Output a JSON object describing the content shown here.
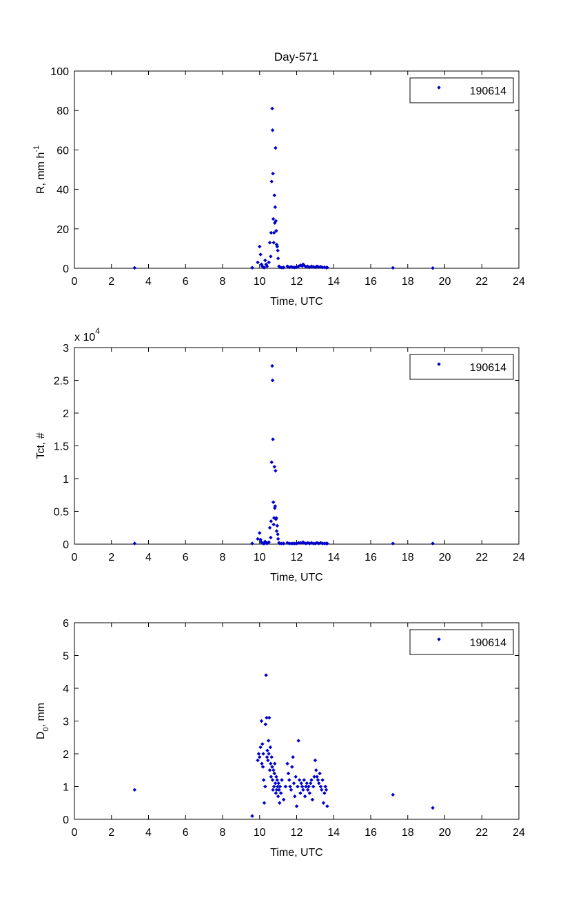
{
  "figure": {
    "title": "Day-571",
    "marker_color": "#0000cc",
    "frame_color": "#000000"
  },
  "chart_data": [
    {
      "type": "scatter",
      "title": "Day-571",
      "xlabel": "Time, UTC",
      "ylabel": "R, mm h",
      "ylabel_sup": "-1",
      "xlim": [
        0,
        24
      ],
      "ylim": [
        0,
        100
      ],
      "xticks": [
        0,
        2,
        4,
        6,
        8,
        10,
        12,
        14,
        16,
        18,
        20,
        22,
        24
      ],
      "yticks": [
        0,
        20,
        40,
        60,
        80,
        100
      ],
      "legend": {
        "label": "190614",
        "position": "top-right"
      },
      "series": [
        {
          "name": "190614",
          "x": [
            3.25,
            9.6,
            9.9,
            10.0,
            10.05,
            10.1,
            10.15,
            10.2,
            10.25,
            10.3,
            10.35,
            10.4,
            10.5,
            10.55,
            10.6,
            10.62,
            10.65,
            10.68,
            10.7,
            10.72,
            10.74,
            10.76,
            10.78,
            10.8,
            10.82,
            10.84,
            10.86,
            10.88,
            10.9,
            10.92,
            10.95,
            10.98,
            11.0,
            11.05,
            11.1,
            11.2,
            11.3,
            11.5,
            11.6,
            11.7,
            11.8,
            11.9,
            12.0,
            12.1,
            12.2,
            12.3,
            12.35,
            12.4,
            12.5,
            12.6,
            12.7,
            12.8,
            12.9,
            13.0,
            13.1,
            13.2,
            13.3,
            13.4,
            13.5,
            13.6,
            13.65,
            17.2,
            19.35
          ],
          "y": [
            0.2,
            0.3,
            3,
            11,
            7,
            2,
            1,
            0.5,
            0.3,
            4,
            2,
            1,
            3,
            13,
            6,
            18,
            44,
            81,
            70,
            48,
            25,
            13,
            18,
            37,
            23,
            31,
            61,
            24,
            19,
            12,
            11,
            9,
            5,
            1,
            0.5,
            0.3,
            0.4,
            1,
            0.5,
            0.8,
            0.5,
            0.4,
            0.6,
            1,
            1.5,
            1.2,
            2,
            1.5,
            0.8,
            1,
            0.5,
            1,
            0.8,
            0.5,
            1,
            0.6,
            0.8,
            0.4,
            0.5,
            0.3,
            0.4,
            0.2,
            0.1
          ]
        }
      ]
    },
    {
      "type": "scatter",
      "title": "",
      "xlabel": "Time, UTC",
      "ylabel": "Tct, #",
      "scale_label": "x 10",
      "scale_exp": "4",
      "xlim": [
        0,
        24
      ],
      "ylim": [
        0,
        3
      ],
      "xticks": [
        0,
        2,
        4,
        6,
        8,
        10,
        12,
        14,
        16,
        18,
        20,
        22,
        24
      ],
      "yticks": [
        0,
        0.5,
        1,
        1.5,
        2,
        2.5,
        3
      ],
      "legend": {
        "label": "190614",
        "position": "top-right"
      },
      "series": [
        {
          "name": "190614",
          "x": [
            3.25,
            9.6,
            9.9,
            10.0,
            10.05,
            10.1,
            10.15,
            10.2,
            10.25,
            10.3,
            10.35,
            10.4,
            10.5,
            10.55,
            10.6,
            10.62,
            10.65,
            10.68,
            10.7,
            10.72,
            10.74,
            10.76,
            10.78,
            10.8,
            10.82,
            10.84,
            10.86,
            10.88,
            10.9,
            10.92,
            10.95,
            10.98,
            11.0,
            11.05,
            11.1,
            11.2,
            11.3,
            11.5,
            11.6,
            11.7,
            11.8,
            11.9,
            12.0,
            12.1,
            12.2,
            12.3,
            12.35,
            12.4,
            12.5,
            12.6,
            12.7,
            12.8,
            12.9,
            13.0,
            13.1,
            13.2,
            13.3,
            13.4,
            13.5,
            13.6,
            13.65,
            17.2,
            19.35
          ],
          "y": [
            0.01,
            0.01,
            0.08,
            0.17,
            0.07,
            0.03,
            0.02,
            0.01,
            0.01,
            0.04,
            0.02,
            0.01,
            0.03,
            0.25,
            0.1,
            0.35,
            1.25,
            2.72,
            2.5,
            1.6,
            0.64,
            0.3,
            0.4,
            1.18,
            0.55,
            0.58,
            1.12,
            0.38,
            0.4,
            0.2,
            0.28,
            0.15,
            0.08,
            0.02,
            0.01,
            0.01,
            0.01,
            0.02,
            0.01,
            0.01,
            0.01,
            0.01,
            0.01,
            0.02,
            0.02,
            0.02,
            0.03,
            0.02,
            0.01,
            0.02,
            0.01,
            0.02,
            0.01,
            0.01,
            0.02,
            0.01,
            0.02,
            0.01,
            0.01,
            0.01,
            0.01,
            0.01,
            0.01
          ]
        }
      ]
    },
    {
      "type": "scatter",
      "title": "",
      "xlabel": "Time, UTC",
      "ylabel": "D",
      "ylabel_sub": "0",
      "ylabel_suffix": ", mm",
      "xlim": [
        0,
        24
      ],
      "ylim": [
        0,
        6
      ],
      "xticks": [
        0,
        2,
        4,
        6,
        8,
        10,
        12,
        14,
        16,
        18,
        20,
        22,
        24
      ],
      "yticks": [
        0,
        1,
        2,
        3,
        4,
        5,
        6
      ],
      "legend": {
        "label": "190614",
        "position": "top-right"
      },
      "series": [
        {
          "name": "190614",
          "x": [
            3.25,
            9.6,
            9.9,
            9.95,
            10.0,
            10.05,
            10.1,
            10.12,
            10.15,
            10.18,
            10.2,
            10.22,
            10.25,
            10.3,
            10.32,
            10.35,
            10.38,
            10.4,
            10.42,
            10.45,
            10.48,
            10.5,
            10.52,
            10.55,
            10.58,
            10.6,
            10.62,
            10.65,
            10.68,
            10.7,
            10.72,
            10.75,
            10.78,
            10.8,
            10.82,
            10.85,
            10.88,
            10.9,
            10.92,
            10.95,
            10.98,
            11.0,
            11.02,
            11.05,
            11.08,
            11.1,
            11.15,
            11.2,
            11.3,
            11.4,
            11.5,
            11.55,
            11.6,
            11.65,
            11.7,
            11.75,
            11.8,
            11.85,
            11.9,
            11.95,
            12.0,
            12.05,
            12.1,
            12.15,
            12.2,
            12.25,
            12.3,
            12.35,
            12.4,
            12.45,
            12.5,
            12.55,
            12.6,
            12.65,
            12.7,
            12.75,
            12.8,
            12.85,
            12.9,
            12.95,
            13.0,
            13.05,
            13.1,
            13.15,
            13.2,
            13.25,
            13.3,
            13.35,
            13.4,
            13.45,
            13.5,
            13.55,
            13.6,
            13.65,
            17.2,
            19.35
          ],
          "y": [
            0.9,
            0.1,
            1.8,
            2.0,
            1.9,
            2.2,
            3.0,
            1.7,
            2.3,
            1.6,
            2.0,
            1.2,
            0.5,
            1.0,
            2.9,
            4.4,
            3.1,
            1.9,
            2.1,
            1.8,
            2.4,
            2.0,
            3.1,
            1.5,
            2.2,
            1.7,
            1.3,
            1.9,
            1.6,
            1.2,
            0.9,
            1.5,
            1.0,
            1.4,
            1.7,
            1.1,
            0.8,
            1.3,
            0.9,
            1.2,
            1.0,
            0.7,
            1.1,
            0.9,
            0.5,
            1.0,
            0.8,
            1.2,
            0.6,
            1.0,
            1.7,
            1.4,
            1.2,
            1.0,
            0.9,
            1.6,
            1.9,
            1.1,
            0.7,
            1.3,
            0.4,
            1.0,
            2.4,
            1.2,
            0.8,
            1.1,
            1.0,
            0.9,
            1.2,
            0.7,
            1.0,
            1.1,
            0.9,
            1.0,
            0.8,
            1.1,
            1.2,
            0.6,
            1.0,
            1.3,
            1.8,
            1.5,
            1.3,
            1.2,
            1.1,
            1.4,
            1.0,
            0.9,
            1.2,
            0.5,
            0.8,
            1.0,
            0.9,
            0.4,
            0.75,
            0.35
          ]
        }
      ]
    }
  ]
}
